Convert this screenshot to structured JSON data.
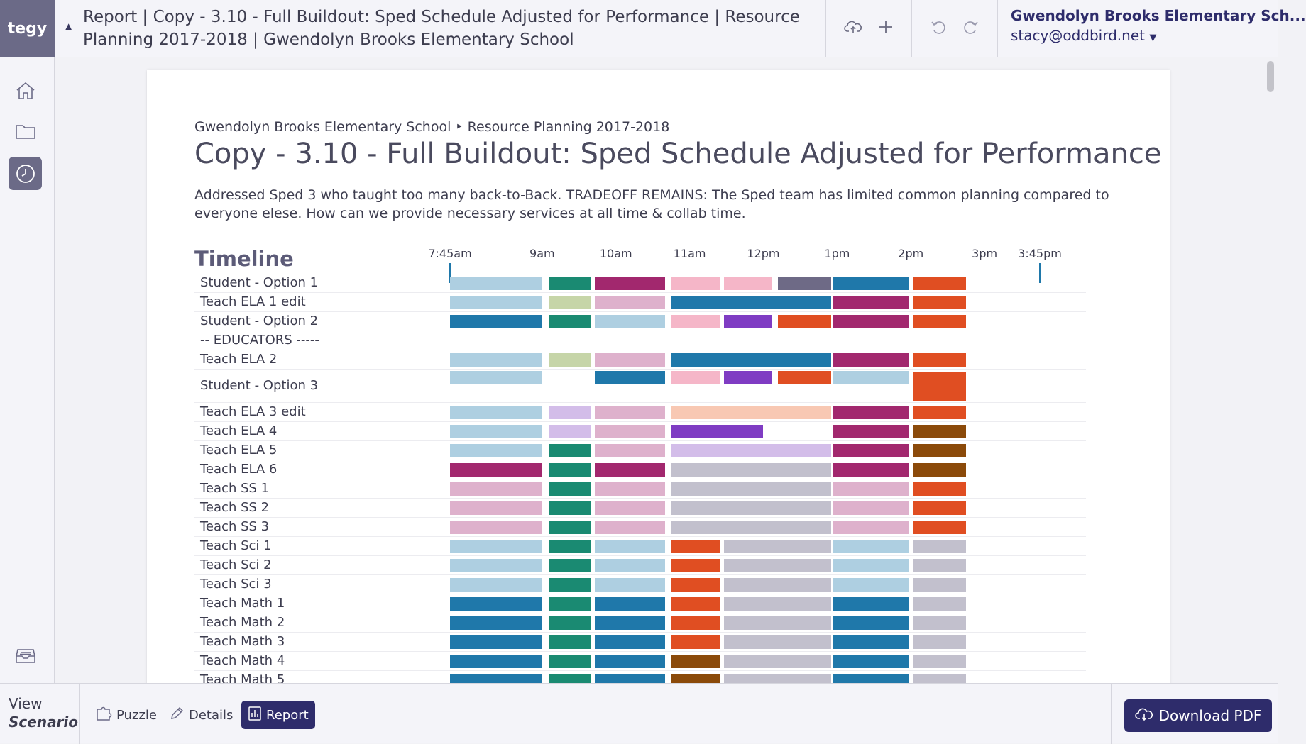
{
  "app": {
    "logo": "tegy"
  },
  "header": {
    "title": "Report | Copy - 3.10 - Full Buildout: Sped Schedule Adjusted for Performance | Resource Planning 2017-2018 | Gwendolyn Brooks Elementary School",
    "user_org": "Gwendolyn Brooks Elementary Sch...",
    "user_email": "stacy@oddbird.net"
  },
  "icons": {
    "nav": [
      "home-icon",
      "folder-icon",
      "clock-icon",
      "inbox-icon"
    ],
    "actions": [
      "cloud-upload-icon",
      "plus-icon",
      "undo-icon",
      "redo-icon"
    ]
  },
  "report": {
    "breadcrumb": "Gwendolyn Brooks Elementary School ‣ Resource Planning 2017-2018",
    "title": "Copy - 3.10 - Full Buildout: Sped Schedule Adjusted for Performance",
    "description": "Addressed Sped 3 who taught too many back-to-Back. TRADEOFF REMAINS: The Sped team has limited common planning compared to everyone elese. How can we provide necessary services at all time & collab time.",
    "timeline_heading": "Timeline"
  },
  "chart_data": {
    "type": "timeline",
    "time_range": [
      "7:45am",
      "3:45pm"
    ],
    "time_labels": [
      "7:45am",
      "9am",
      "10am",
      "11am",
      "12pm",
      "1pm",
      "2pm",
      "3pm",
      "3:45pm"
    ],
    "rows": [
      {
        "label": "Student - Option 1",
        "segments": [
          [
            "7:45",
            "9:00",
            "#aecfe1"
          ],
          [
            "9:05",
            "9:40",
            "#1a8a72"
          ],
          [
            "9:43",
            "10:40",
            "#a2286e"
          ],
          [
            "10:45",
            "11:25",
            "#f5b6c8"
          ],
          [
            "11:28",
            "12:07",
            "#f5b6c8"
          ],
          [
            "12:12",
            "12:55",
            "#6e6a86"
          ],
          [
            "12:57",
            "13:58",
            "#1f78aa"
          ],
          [
            "14:02",
            "14:45",
            "#e04e22"
          ]
        ]
      },
      {
        "label": "Teach ELA 1 edit",
        "segments": [
          [
            "7:45",
            "9:00",
            "#aecfe1"
          ],
          [
            "9:05",
            "9:40",
            "#c6d5a8"
          ],
          [
            "9:43",
            "10:40",
            "#deb1cc"
          ],
          [
            "10:45",
            "12:55",
            "#1f78aa"
          ],
          [
            "12:57",
            "13:58",
            "#a2286e"
          ],
          [
            "14:02",
            "14:45",
            "#e04e22"
          ]
        ]
      },
      {
        "label": "Student - Option 2",
        "segments": [
          [
            "7:45",
            "9:00",
            "#1f78aa"
          ],
          [
            "9:05",
            "9:40",
            "#1a8a72"
          ],
          [
            "9:43",
            "10:40",
            "#aecfe1"
          ],
          [
            "10:45",
            "11:25",
            "#f5b6c8"
          ],
          [
            "11:28",
            "12:07",
            "#7f3cc3"
          ],
          [
            "12:12",
            "12:55",
            "#e04e22"
          ],
          [
            "12:57",
            "13:58",
            "#a2286e"
          ],
          [
            "14:02",
            "14:45",
            "#e04e22"
          ]
        ]
      },
      {
        "label": "-- EDUCATORS -----",
        "segments": []
      },
      {
        "label": "Teach ELA 2",
        "segments": [
          [
            "7:45",
            "9:00",
            "#aecfe1"
          ],
          [
            "9:05",
            "9:40",
            "#c6d5a8"
          ],
          [
            "9:43",
            "10:40",
            "#deb1cc"
          ],
          [
            "10:45",
            "12:55",
            "#1f78aa"
          ],
          [
            "12:57",
            "13:58",
            "#a2286e"
          ],
          [
            "14:02",
            "14:45",
            "#e04e22"
          ]
        ]
      },
      {
        "label": "Student - Option 3",
        "segments": [
          [
            "7:45",
            "9:00",
            "#aecfe1"
          ],
          [
            "9:43",
            "10:40",
            "#1f78aa"
          ],
          [
            "10:45",
            "11:25",
            "#f5b6c8"
          ],
          [
            "11:28",
            "12:07",
            "#7f3cc3"
          ],
          [
            "12:12",
            "12:55",
            "#e04e22"
          ],
          [
            "12:57",
            "13:58",
            "#aecfe1"
          ],
          [
            "14:02",
            "14:45",
            "#e04e22"
          ]
        ]
      },
      {
        "label": "Teach ELA 3 edit",
        "segments": [
          [
            "7:45",
            "9:00",
            "#aecfe1"
          ],
          [
            "9:05",
            "9:40",
            "#d3bde9"
          ],
          [
            "9:43",
            "10:40",
            "#deb1cc"
          ],
          [
            "10:45",
            "12:55",
            "#f8c8b3"
          ],
          [
            "12:57",
            "13:58",
            "#a2286e"
          ],
          [
            "14:02",
            "14:45",
            "#e04e22"
          ]
        ]
      },
      {
        "label": "Teach ELA 4",
        "segments": [
          [
            "7:45",
            "9:00",
            "#aecfe1"
          ],
          [
            "9:05",
            "9:40",
            "#d3bde9"
          ],
          [
            "9:43",
            "10:40",
            "#deb1cc"
          ],
          [
            "10:45",
            "12:00",
            "#7f3cc3"
          ],
          [
            "12:57",
            "13:58",
            "#a2286e"
          ],
          [
            "14:02",
            "14:45",
            "#8b4a0a"
          ]
        ]
      },
      {
        "label": "Teach ELA 5",
        "segments": [
          [
            "7:45",
            "9:00",
            "#aecfe1"
          ],
          [
            "9:05",
            "9:40",
            "#1a8a72"
          ],
          [
            "9:43",
            "10:40",
            "#deb1cc"
          ],
          [
            "10:45",
            "12:55",
            "#d3bde9"
          ],
          [
            "12:57",
            "13:58",
            "#a2286e"
          ],
          [
            "14:02",
            "14:45",
            "#8b4a0a"
          ]
        ]
      },
      {
        "label": "Teach ELA 6",
        "segments": [
          [
            "7:45",
            "9:00",
            "#a2286e"
          ],
          [
            "9:05",
            "9:40",
            "#1a8a72"
          ],
          [
            "9:43",
            "10:40",
            "#a2286e"
          ],
          [
            "10:45",
            "12:55",
            "#c2c0cd"
          ],
          [
            "12:57",
            "13:58",
            "#a2286e"
          ],
          [
            "14:02",
            "14:45",
            "#8b4a0a"
          ]
        ]
      },
      {
        "label": "Teach SS 1",
        "segments": [
          [
            "7:45",
            "9:00",
            "#deb1cc"
          ],
          [
            "9:05",
            "9:40",
            "#1a8a72"
          ],
          [
            "9:43",
            "10:40",
            "#deb1cc"
          ],
          [
            "10:45",
            "12:55",
            "#c2c0cd"
          ],
          [
            "12:57",
            "13:58",
            "#deb1cc"
          ],
          [
            "14:02",
            "14:45",
            "#e04e22"
          ]
        ]
      },
      {
        "label": "Teach SS 2",
        "segments": [
          [
            "7:45",
            "9:00",
            "#deb1cc"
          ],
          [
            "9:05",
            "9:40",
            "#1a8a72"
          ],
          [
            "9:43",
            "10:40",
            "#deb1cc"
          ],
          [
            "10:45",
            "12:55",
            "#c2c0cd"
          ],
          [
            "12:57",
            "13:58",
            "#deb1cc"
          ],
          [
            "14:02",
            "14:45",
            "#e04e22"
          ]
        ]
      },
      {
        "label": "Teach SS 3",
        "segments": [
          [
            "7:45",
            "9:00",
            "#deb1cc"
          ],
          [
            "9:05",
            "9:40",
            "#1a8a72"
          ],
          [
            "9:43",
            "10:40",
            "#deb1cc"
          ],
          [
            "10:45",
            "12:55",
            "#c2c0cd"
          ],
          [
            "12:57",
            "13:58",
            "#deb1cc"
          ],
          [
            "14:02",
            "14:45",
            "#e04e22"
          ]
        ]
      },
      {
        "label": "Teach Sci 1",
        "segments": [
          [
            "7:45",
            "9:00",
            "#aecfe1"
          ],
          [
            "9:05",
            "9:40",
            "#1a8a72"
          ],
          [
            "9:43",
            "10:40",
            "#aecfe1"
          ],
          [
            "10:45",
            "11:25",
            "#e04e22"
          ],
          [
            "11:28",
            "12:55",
            "#c2c0cd"
          ],
          [
            "12:57",
            "13:58",
            "#aecfe1"
          ],
          [
            "14:02",
            "14:45",
            "#c2c0cd"
          ]
        ]
      },
      {
        "label": "Teach Sci 2",
        "segments": [
          [
            "7:45",
            "9:00",
            "#aecfe1"
          ],
          [
            "9:05",
            "9:40",
            "#1a8a72"
          ],
          [
            "9:43",
            "10:40",
            "#aecfe1"
          ],
          [
            "10:45",
            "11:25",
            "#e04e22"
          ],
          [
            "11:28",
            "12:55",
            "#c2c0cd"
          ],
          [
            "12:57",
            "13:58",
            "#aecfe1"
          ],
          [
            "14:02",
            "14:45",
            "#c2c0cd"
          ]
        ]
      },
      {
        "label": "Teach Sci 3",
        "segments": [
          [
            "7:45",
            "9:00",
            "#aecfe1"
          ],
          [
            "9:05",
            "9:40",
            "#1a8a72"
          ],
          [
            "9:43",
            "10:40",
            "#aecfe1"
          ],
          [
            "10:45",
            "11:25",
            "#e04e22"
          ],
          [
            "11:28",
            "12:55",
            "#c2c0cd"
          ],
          [
            "12:57",
            "13:58",
            "#aecfe1"
          ],
          [
            "14:02",
            "14:45",
            "#c2c0cd"
          ]
        ]
      },
      {
        "label": "Teach Math 1",
        "segments": [
          [
            "7:45",
            "9:00",
            "#1f78aa"
          ],
          [
            "9:05",
            "9:40",
            "#1a8a72"
          ],
          [
            "9:43",
            "10:40",
            "#1f78aa"
          ],
          [
            "10:45",
            "11:25",
            "#e04e22"
          ],
          [
            "11:28",
            "12:55",
            "#c2c0cd"
          ],
          [
            "12:57",
            "13:58",
            "#1f78aa"
          ],
          [
            "14:02",
            "14:45",
            "#c2c0cd"
          ]
        ]
      },
      {
        "label": "Teach Math 2",
        "segments": [
          [
            "7:45",
            "9:00",
            "#1f78aa"
          ],
          [
            "9:05",
            "9:40",
            "#1a8a72"
          ],
          [
            "9:43",
            "10:40",
            "#1f78aa"
          ],
          [
            "10:45",
            "11:25",
            "#e04e22"
          ],
          [
            "11:28",
            "12:55",
            "#c2c0cd"
          ],
          [
            "12:57",
            "13:58",
            "#1f78aa"
          ],
          [
            "14:02",
            "14:45",
            "#c2c0cd"
          ]
        ]
      },
      {
        "label": "Teach Math 3",
        "segments": [
          [
            "7:45",
            "9:00",
            "#1f78aa"
          ],
          [
            "9:05",
            "9:40",
            "#1a8a72"
          ],
          [
            "9:43",
            "10:40",
            "#1f78aa"
          ],
          [
            "10:45",
            "11:25",
            "#e04e22"
          ],
          [
            "11:28",
            "12:55",
            "#c2c0cd"
          ],
          [
            "12:57",
            "13:58",
            "#1f78aa"
          ],
          [
            "14:02",
            "14:45",
            "#c2c0cd"
          ]
        ]
      },
      {
        "label": "Teach Math 4",
        "segments": [
          [
            "7:45",
            "9:00",
            "#1f78aa"
          ],
          [
            "9:05",
            "9:40",
            "#1a8a72"
          ],
          [
            "9:43",
            "10:40",
            "#1f78aa"
          ],
          [
            "10:45",
            "11:25",
            "#8b4a0a"
          ],
          [
            "11:28",
            "12:55",
            "#c2c0cd"
          ],
          [
            "12:57",
            "13:58",
            "#1f78aa"
          ],
          [
            "14:02",
            "14:45",
            "#c2c0cd"
          ]
        ]
      },
      {
        "label": "Teach Math 5",
        "segments": [
          [
            "7:45",
            "9:00",
            "#1f78aa"
          ],
          [
            "9:05",
            "9:40",
            "#1a8a72"
          ],
          [
            "9:43",
            "10:40",
            "#1f78aa"
          ],
          [
            "10:45",
            "11:25",
            "#8b4a0a"
          ],
          [
            "11:28",
            "12:55",
            "#c2c0cd"
          ],
          [
            "12:57",
            "13:58",
            "#1f78aa"
          ],
          [
            "14:02",
            "14:45",
            "#c2c0cd"
          ]
        ]
      }
    ]
  },
  "bottom": {
    "view_label": "View",
    "view_sub": "Scenario",
    "tabs": [
      {
        "label": "Puzzle",
        "icon": "puzzle-icon"
      },
      {
        "label": "Details",
        "icon": "pencil-icon"
      },
      {
        "label": "Report",
        "icon": "chart-icon"
      }
    ],
    "download_label": "Download PDF"
  },
  "colors": {
    "brand": "#2e2c6b",
    "logo_bg": "#6b6a87"
  }
}
